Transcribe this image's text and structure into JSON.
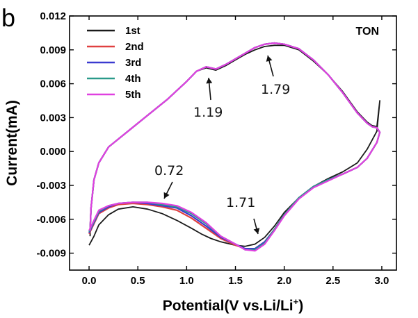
{
  "panel_label": "b",
  "chart_data": {
    "type": "line",
    "title": "TON",
    "xlabel": "Potential(V vs.Li/Li",
    "xlabel_sup": "+",
    "xlabel_close": ")",
    "ylabel": "Current(mA)",
    "xlim": [
      -0.2,
      3.15
    ],
    "ylim": [
      -0.0105,
      0.012
    ],
    "x_ticks": [
      0.0,
      0.5,
      1.0,
      1.5,
      2.0,
      2.5,
      3.0
    ],
    "x_tick_labels": [
      "0.0",
      "0.5",
      "1.0",
      "1.5",
      "2.0",
      "2.5",
      "3.0"
    ],
    "y_ticks": [
      -0.009,
      -0.006,
      -0.003,
      0.0,
      0.003,
      0.006,
      0.009,
      0.012
    ],
    "y_tick_labels": [
      "-0.009",
      "-0.006",
      "-0.003",
      "0.000",
      "0.003",
      "0.006",
      "0.009",
      "0.012"
    ],
    "legend_position": "top-left",
    "grid": false,
    "series": [
      {
        "name": "1st",
        "color": "#1a1a1a",
        "x": [
          0.0,
          0.05,
          0.1,
          0.2,
          0.3,
          0.45,
          0.6,
          0.75,
          0.9,
          1.05,
          1.15,
          1.25,
          1.35,
          1.5,
          1.6,
          1.7,
          1.8,
          1.9,
          2.0,
          2.15,
          2.3,
          2.45,
          2.6,
          2.75,
          2.85,
          2.95,
          2.98,
          2.95,
          2.9,
          2.85,
          2.75,
          2.6,
          2.45,
          2.3,
          2.15,
          2.0,
          1.9,
          1.8,
          1.7,
          1.6,
          1.5,
          1.4,
          1.3,
          1.2,
          1.1,
          1.0,
          0.8,
          0.6,
          0.4,
          0.2,
          0.1,
          0.05,
          0.02,
          0.01
        ],
        "y": [
          -0.0083,
          -0.0075,
          -0.0065,
          -0.0056,
          -0.0051,
          -0.0049,
          -0.0051,
          -0.0055,
          -0.0061,
          -0.0068,
          -0.0073,
          -0.0077,
          -0.008,
          -0.0083,
          -0.0084,
          -0.0082,
          -0.0076,
          -0.0066,
          -0.0054,
          -0.0041,
          -0.0031,
          -0.0024,
          -0.0018,
          -0.001,
          0.0002,
          0.0018,
          0.0045,
          0.0022,
          0.0023,
          0.0026,
          0.0035,
          0.0053,
          0.0068,
          0.008,
          0.009,
          0.0094,
          0.0094,
          0.0093,
          0.009,
          0.0086,
          0.0081,
          0.0076,
          0.0072,
          0.0074,
          0.0071,
          0.0062,
          0.0046,
          0.0032,
          0.0018,
          0.0004,
          -0.001,
          -0.0025,
          -0.005,
          -0.0075
        ]
      },
      {
        "name": "2nd",
        "color": "#e04040",
        "x": [
          0.0,
          0.05,
          0.1,
          0.2,
          0.3,
          0.45,
          0.6,
          0.75,
          0.9,
          1.05,
          1.2,
          1.35,
          1.5,
          1.6,
          1.7,
          1.8,
          1.9,
          2.0,
          2.15,
          2.3,
          2.45,
          2.6,
          2.75,
          2.85,
          2.95,
          2.98,
          2.95,
          2.9,
          2.85,
          2.75,
          2.6,
          2.45,
          2.3,
          2.15,
          2.0,
          1.9,
          1.8,
          1.7,
          1.6,
          1.5,
          1.4,
          1.3,
          1.2,
          1.1,
          1.0,
          0.8,
          0.6,
          0.4,
          0.2,
          0.1,
          0.05,
          0.02,
          0.01
        ],
        "y": [
          -0.0073,
          -0.0064,
          -0.0055,
          -0.005,
          -0.0047,
          -0.0046,
          -0.0047,
          -0.0049,
          -0.0052,
          -0.0059,
          -0.0068,
          -0.0077,
          -0.0083,
          -0.0086,
          -0.0086,
          -0.008,
          -0.0069,
          -0.0056,
          -0.0041,
          -0.0031,
          -0.0025,
          -0.002,
          -0.0014,
          -0.0006,
          0.0008,
          0.0017,
          0.0021,
          0.0022,
          0.0025,
          0.0034,
          0.0052,
          0.0068,
          0.0081,
          0.0091,
          0.0095,
          0.0096,
          0.0095,
          0.0092,
          0.0087,
          0.0082,
          0.0077,
          0.0073,
          0.0075,
          0.0071,
          0.0062,
          0.0046,
          0.0032,
          0.0018,
          0.0004,
          -0.001,
          -0.0025,
          -0.005,
          -0.007
        ]
      },
      {
        "name": "3rd",
        "color": "#3a3ad0",
        "x": [
          0.0,
          0.05,
          0.1,
          0.2,
          0.3,
          0.45,
          0.6,
          0.75,
          0.9,
          1.05,
          1.2,
          1.35,
          1.5,
          1.6,
          1.7,
          1.8,
          1.9,
          2.0,
          2.15,
          2.3,
          2.45,
          2.6,
          2.75,
          2.85,
          2.95,
          2.98,
          2.95,
          2.9,
          2.85,
          2.75,
          2.6,
          2.45,
          2.3,
          2.15,
          2.0,
          1.9,
          1.8,
          1.7,
          1.6,
          1.5,
          1.4,
          1.3,
          1.2,
          1.1,
          1.0,
          0.8,
          0.6,
          0.4,
          0.2,
          0.1,
          0.05,
          0.02,
          0.01
        ],
        "y": [
          -0.0072,
          -0.0063,
          -0.0054,
          -0.0049,
          -0.0046,
          -0.0045,
          -0.0046,
          -0.0048,
          -0.005,
          -0.0057,
          -0.0066,
          -0.0076,
          -0.0082,
          -0.0086,
          -0.0086,
          -0.008,
          -0.0069,
          -0.0056,
          -0.0041,
          -0.0031,
          -0.0025,
          -0.002,
          -0.0014,
          -0.0006,
          0.0008,
          0.0017,
          0.0021,
          0.0022,
          0.0025,
          0.0034,
          0.0052,
          0.0068,
          0.0081,
          0.0091,
          0.0095,
          0.0096,
          0.0095,
          0.0092,
          0.0087,
          0.0082,
          0.0077,
          0.0073,
          0.0075,
          0.0071,
          0.0062,
          0.0046,
          0.0032,
          0.0018,
          0.0004,
          -0.001,
          -0.0025,
          -0.005,
          -0.007
        ]
      },
      {
        "name": "4th",
        "color": "#2a9a8a",
        "x": [
          0.0,
          0.05,
          0.1,
          0.2,
          0.3,
          0.45,
          0.6,
          0.75,
          0.9,
          1.05,
          1.2,
          1.35,
          1.5,
          1.6,
          1.7,
          1.8,
          1.9,
          2.0,
          2.15,
          2.3,
          2.45,
          2.6,
          2.75,
          2.85,
          2.95,
          2.98,
          2.95,
          2.9,
          2.85,
          2.75,
          2.6,
          2.45,
          2.3,
          2.15,
          2.0,
          1.9,
          1.8,
          1.7,
          1.6,
          1.5,
          1.4,
          1.3,
          1.2,
          1.1,
          1.0,
          0.8,
          0.6,
          0.4,
          0.2,
          0.1,
          0.05,
          0.02,
          0.01
        ],
        "y": [
          -0.0071,
          -0.0062,
          -0.0053,
          -0.0048,
          -0.0046,
          -0.0045,
          -0.0045,
          -0.0047,
          -0.0049,
          -0.0055,
          -0.0064,
          -0.0075,
          -0.0082,
          -0.0087,
          -0.0087,
          -0.0081,
          -0.0069,
          -0.0056,
          -0.0041,
          -0.0031,
          -0.0025,
          -0.002,
          -0.0014,
          -0.0006,
          0.0008,
          0.0017,
          0.0021,
          0.0022,
          0.0025,
          0.0034,
          0.0052,
          0.0068,
          0.0081,
          0.0091,
          0.0095,
          0.0096,
          0.0095,
          0.0092,
          0.0087,
          0.0082,
          0.0077,
          0.0073,
          0.0075,
          0.0071,
          0.0062,
          0.0046,
          0.0032,
          0.0018,
          0.0004,
          -0.001,
          -0.0025,
          -0.005,
          -0.007
        ]
      },
      {
        "name": "5th",
        "color": "#e040e0",
        "x": [
          0.0,
          0.05,
          0.1,
          0.2,
          0.3,
          0.45,
          0.6,
          0.75,
          0.9,
          1.05,
          1.2,
          1.35,
          1.5,
          1.6,
          1.7,
          1.8,
          1.9,
          2.0,
          2.15,
          2.3,
          2.45,
          2.6,
          2.75,
          2.85,
          2.95,
          2.98,
          2.95,
          2.9,
          2.85,
          2.75,
          2.6,
          2.45,
          2.3,
          2.15,
          2.0,
          1.9,
          1.8,
          1.7,
          1.6,
          1.5,
          1.4,
          1.3,
          1.2,
          1.1,
          1.0,
          0.8,
          0.6,
          0.4,
          0.2,
          0.1,
          0.05,
          0.02,
          0.01
        ],
        "y": [
          -0.007,
          -0.0061,
          -0.0052,
          -0.0048,
          -0.0046,
          -0.0045,
          -0.0045,
          -0.0046,
          -0.0048,
          -0.0054,
          -0.0063,
          -0.0075,
          -0.0082,
          -0.0087,
          -0.0088,
          -0.0082,
          -0.007,
          -0.0057,
          -0.0042,
          -0.0032,
          -0.0026,
          -0.002,
          -0.0014,
          -0.0006,
          0.0008,
          0.0017,
          0.0021,
          0.0022,
          0.0025,
          0.0034,
          0.0052,
          0.0068,
          0.0081,
          0.0091,
          0.0095,
          0.0096,
          0.0095,
          0.0092,
          0.0087,
          0.0082,
          0.0077,
          0.0073,
          0.0075,
          0.0071,
          0.0062,
          0.0046,
          0.0032,
          0.0018,
          0.0004,
          -0.001,
          -0.0025,
          -0.005,
          -0.007
        ]
      }
    ],
    "annotations": [
      {
        "text": "1.19",
        "x": 1.2,
        "y": 0.0074
      },
      {
        "text": "1.79",
        "x": 1.79,
        "y": 0.0095
      },
      {
        "text": "0.72",
        "x": 0.72,
        "y": -0.0046
      },
      {
        "text": "1.71",
        "x": 1.71,
        "y": -0.0086
      }
    ]
  }
}
